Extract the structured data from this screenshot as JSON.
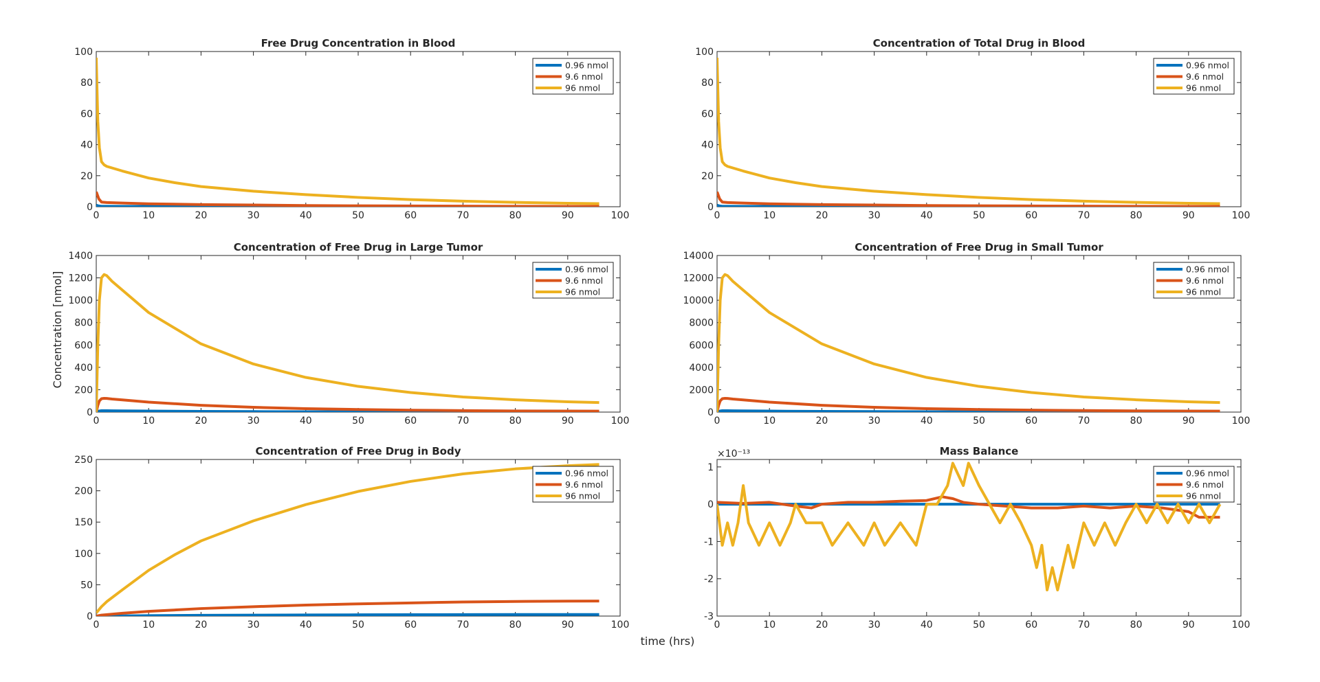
{
  "figure": {
    "ylabel": "Concentration [nmol]",
    "xlabel": "time (hrs)"
  },
  "colors": {
    "series_1": "#0072BD",
    "series_2": "#D95319",
    "series_3": "#EDB120",
    "axis": "#262626"
  },
  "chart_data": [
    {
      "type": "line",
      "title": "Free Drug Concentration in Blood",
      "xlim": [
        0,
        100
      ],
      "ylim": [
        0,
        100
      ],
      "xticks": [
        0,
        10,
        20,
        30,
        40,
        50,
        60,
        70,
        80,
        90,
        100
      ],
      "yticks": [
        0,
        20,
        40,
        60,
        80,
        100
      ],
      "legend": "top-right",
      "series": [
        {
          "name": "0.96 nmol",
          "x": [
            0,
            0.5,
            1,
            2,
            5,
            10,
            20,
            30,
            40,
            50,
            60,
            70,
            80,
            90,
            96
          ],
          "y": [
            0.96,
            0.5,
            0.3,
            0.27,
            0.24,
            0.2,
            0.14,
            0.11,
            0.08,
            0.06,
            0.05,
            0.04,
            0.03,
            0.025,
            0.02
          ]
        },
        {
          "name": "9.6 nmol",
          "x": [
            0,
            0.5,
            1,
            2,
            5,
            10,
            20,
            30,
            40,
            50,
            60,
            70,
            80,
            90,
            96
          ],
          "y": [
            9.6,
            5,
            3,
            2.7,
            2.4,
            1.9,
            1.4,
            1.1,
            0.8,
            0.6,
            0.5,
            0.4,
            0.3,
            0.25,
            0.2
          ]
        },
        {
          "name": "96 nmol",
          "x": [
            0,
            0.3,
            0.6,
            1,
            1.5,
            2,
            5,
            10,
            15,
            20,
            30,
            40,
            50,
            60,
            70,
            80,
            90,
            96
          ],
          "y": [
            96,
            55,
            38,
            29,
            27,
            26,
            23,
            18.5,
            15.5,
            13,
            10,
            7.8,
            6,
            4.6,
            3.6,
            2.8,
            2.2,
            2
          ]
        }
      ]
    },
    {
      "type": "line",
      "title": "Concentration of Total Drug in Blood",
      "xlim": [
        0,
        100
      ],
      "ylim": [
        0,
        100
      ],
      "xticks": [
        0,
        10,
        20,
        30,
        40,
        50,
        60,
        70,
        80,
        90,
        100
      ],
      "yticks": [
        0,
        20,
        40,
        60,
        80,
        100
      ],
      "legend": "top-right",
      "series": [
        {
          "name": "0.96 nmol",
          "x": [
            0,
            0.5,
            1,
            2,
            5,
            10,
            20,
            30,
            40,
            50,
            60,
            70,
            80,
            90,
            96
          ],
          "y": [
            0.96,
            0.5,
            0.3,
            0.27,
            0.24,
            0.2,
            0.14,
            0.11,
            0.08,
            0.06,
            0.05,
            0.04,
            0.03,
            0.025,
            0.02
          ]
        },
        {
          "name": "9.6 nmol",
          "x": [
            0,
            0.5,
            1,
            2,
            5,
            10,
            20,
            30,
            40,
            50,
            60,
            70,
            80,
            90,
            96
          ],
          "y": [
            9.6,
            5,
            3,
            2.7,
            2.4,
            1.9,
            1.4,
            1.1,
            0.8,
            0.6,
            0.5,
            0.4,
            0.3,
            0.25,
            0.2
          ]
        },
        {
          "name": "96 nmol",
          "x": [
            0,
            0.3,
            0.6,
            1,
            1.5,
            2,
            5,
            10,
            15,
            20,
            30,
            40,
            50,
            60,
            70,
            80,
            90,
            96
          ],
          "y": [
            96,
            55,
            38,
            29,
            27,
            26,
            23,
            18.5,
            15.5,
            13,
            10,
            7.8,
            6,
            4.6,
            3.6,
            2.8,
            2.2,
            2
          ]
        }
      ]
    },
    {
      "type": "line",
      "title": "Concentration of Free Drug in Large Tumor",
      "xlim": [
        0,
        100
      ],
      "ylim": [
        0,
        1400
      ],
      "xticks": [
        0,
        10,
        20,
        30,
        40,
        50,
        60,
        70,
        80,
        90,
        100
      ],
      "yticks": [
        0,
        200,
        400,
        600,
        800,
        1000,
        1200,
        1400
      ],
      "legend": "top-right",
      "series": [
        {
          "name": "0.96 nmol",
          "x": [
            0,
            0.3,
            0.6,
            1,
            1.5,
            2,
            3,
            5,
            10,
            20,
            30,
            40,
            50,
            60,
            70,
            80,
            90,
            96
          ],
          "y": [
            0,
            6,
            10,
            12,
            12.3,
            12.2,
            11.7,
            10.9,
            8.9,
            6.1,
            4.3,
            3.1,
            2.3,
            1.7,
            1.3,
            1,
            0.9,
            0.85
          ]
        },
        {
          "name": "9.6 nmol",
          "x": [
            0,
            0.3,
            0.6,
            1,
            1.5,
            2,
            3,
            5,
            10,
            20,
            30,
            40,
            50,
            60,
            70,
            80,
            90,
            96
          ],
          "y": [
            0,
            60,
            100,
            120,
            123,
            122,
            117,
            109,
            89,
            61,
            43,
            31,
            23,
            17,
            13,
            10,
            9,
            8.5
          ]
        },
        {
          "name": "96 nmol",
          "x": [
            0,
            0.3,
            0.6,
            1,
            1.5,
            2,
            3,
            5,
            10,
            20,
            30,
            40,
            50,
            60,
            70,
            80,
            90,
            96
          ],
          "y": [
            0,
            600,
            1000,
            1200,
            1230,
            1220,
            1170,
            1090,
            890,
            610,
            430,
            310,
            230,
            175,
            135,
            110,
            92,
            85
          ]
        }
      ]
    },
    {
      "type": "line",
      "title": "Concentration of Free Drug in Small Tumor",
      "xlim": [
        0,
        100
      ],
      "ylim": [
        0,
        14000
      ],
      "xticks": [
        0,
        10,
        20,
        30,
        40,
        50,
        60,
        70,
        80,
        90,
        100
      ],
      "yticks": [
        0,
        2000,
        4000,
        6000,
        8000,
        10000,
        12000,
        14000
      ],
      "legend": "top-right",
      "series": [
        {
          "name": "0.96 nmol",
          "x": [
            0,
            0.3,
            0.6,
            1,
            1.5,
            2,
            3,
            5,
            10,
            20,
            30,
            40,
            50,
            60,
            70,
            80,
            90,
            96
          ],
          "y": [
            0,
            60,
            100,
            120,
            123,
            122,
            117,
            109,
            89,
            61,
            43,
            31,
            23,
            17,
            13,
            10,
            9,
            8.5
          ]
        },
        {
          "name": "9.6 nmol",
          "x": [
            0,
            0.3,
            0.6,
            1,
            1.5,
            2,
            3,
            5,
            10,
            20,
            30,
            40,
            50,
            60,
            70,
            80,
            90,
            96
          ],
          "y": [
            0,
            600,
            1000,
            1200,
            1230,
            1220,
            1170,
            1090,
            890,
            610,
            430,
            310,
            230,
            175,
            135,
            110,
            92,
            85
          ]
        },
        {
          "name": "96 nmol",
          "x": [
            0,
            0.3,
            0.6,
            1,
            1.5,
            2,
            3,
            5,
            10,
            20,
            30,
            40,
            50,
            60,
            70,
            80,
            90,
            96
          ],
          "y": [
            0,
            6000,
            10000,
            12000,
            12300,
            12200,
            11700,
            10900,
            8900,
            6100,
            4300,
            3100,
            2300,
            1750,
            1350,
            1100,
            920,
            850
          ]
        }
      ]
    },
    {
      "type": "line",
      "title": "Concentration of Free Drug in Body",
      "xlim": [
        0,
        100
      ],
      "ylim": [
        0,
        250
      ],
      "xticks": [
        0,
        10,
        20,
        30,
        40,
        50,
        60,
        70,
        80,
        90,
        100
      ],
      "yticks": [
        0,
        50,
        100,
        150,
        200,
        250
      ],
      "legend": "top-right",
      "series": [
        {
          "name": "0.96 nmol",
          "x": [
            0,
            1,
            5,
            10,
            20,
            30,
            40,
            50,
            60,
            70,
            80,
            90,
            96
          ],
          "y": [
            0,
            0.1,
            0.3,
            0.7,
            1.2,
            1.5,
            1.8,
            2.0,
            2.2,
            2.3,
            2.4,
            2.4,
            2.4
          ]
        },
        {
          "name": "9.6 nmol",
          "x": [
            0,
            1,
            5,
            10,
            20,
            30,
            40,
            50,
            60,
            70,
            80,
            90,
            96
          ],
          "y": [
            0,
            1.5,
            4.5,
            7.5,
            12,
            15,
            17.5,
            19.5,
            21,
            22.5,
            23.3,
            23.8,
            24
          ]
        },
        {
          "name": "96 nmol",
          "x": [
            0,
            1,
            2,
            5,
            10,
            15,
            20,
            30,
            40,
            50,
            60,
            70,
            80,
            90,
            96
          ],
          "y": [
            5,
            15,
            23,
            42,
            73,
            98,
            120,
            152,
            178,
            199,
            215,
            227,
            235,
            240,
            242
          ]
        }
      ]
    },
    {
      "type": "line",
      "title": "Mass Balance",
      "xlim": [
        0,
        100
      ],
      "ylim": [
        -3,
        1.2
      ],
      "xticks": [
        0,
        10,
        20,
        30,
        40,
        50,
        60,
        70,
        80,
        90,
        100
      ],
      "yticks": [
        -3,
        -2,
        -1,
        0,
        1
      ],
      "y_exponent": "×10⁻¹³",
      "legend": "top-right",
      "series": [
        {
          "name": "0.96 nmol",
          "x": [
            0,
            10,
            20,
            30,
            40,
            50,
            60,
            70,
            80,
            90,
            96
          ],
          "y": [
            0,
            0,
            0,
            0,
            0,
            0,
            0,
            0,
            0,
            0,
            0
          ]
        },
        {
          "name": "9.6 nmol",
          "x": [
            0,
            5,
            10,
            15,
            18,
            20,
            25,
            30,
            35,
            40,
            43,
            45,
            47,
            50,
            55,
            60,
            65,
            70,
            75,
            80,
            85,
            90,
            92,
            96
          ],
          "y": [
            0.05,
            0.02,
            0.05,
            -0.05,
            -0.1,
            0,
            0.05,
            0.05,
            0.08,
            0.1,
            0.2,
            0.15,
            0.05,
            0,
            -0.05,
            -0.1,
            -0.1,
            -0.05,
            -0.1,
            -0.05,
            -0.1,
            -0.2,
            -0.35,
            -0.35
          ]
        },
        {
          "name": "96 nmol",
          "x": [
            0,
            1,
            2,
            3,
            4,
            5,
            6,
            8,
            10,
            12,
            14,
            15,
            17,
            20,
            22,
            25,
            28,
            30,
            32,
            35,
            38,
            40,
            42,
            44,
            45,
            47,
            48,
            50,
            52,
            54,
            56,
            58,
            60,
            61,
            62,
            63,
            64,
            65,
            66,
            67,
            68,
            69,
            70,
            72,
            74,
            76,
            78,
            80,
            82,
            84,
            86,
            88,
            90,
            92,
            94,
            96
          ],
          "y": [
            0,
            -1.1,
            -0.5,
            -1.1,
            -0.5,
            0.5,
            -0.5,
            -1.1,
            -0.5,
            -1.1,
            -0.5,
            0,
            -0.5,
            -0.5,
            -1.1,
            -0.5,
            -1.1,
            -0.5,
            -1.1,
            -0.5,
            -1.1,
            0,
            0,
            0.5,
            1.1,
            0.5,
            1.1,
            0.5,
            0,
            -0.5,
            0,
            -0.5,
            -1.1,
            -1.7,
            -1.1,
            -2.3,
            -1.7,
            -2.3,
            -1.7,
            -1.1,
            -1.7,
            -1.1,
            -0.5,
            -1.1,
            -0.5,
            -1.1,
            -0.5,
            0,
            -0.5,
            0,
            -0.5,
            0,
            -0.5,
            0,
            -0.5,
            0
          ]
        }
      ]
    }
  ]
}
